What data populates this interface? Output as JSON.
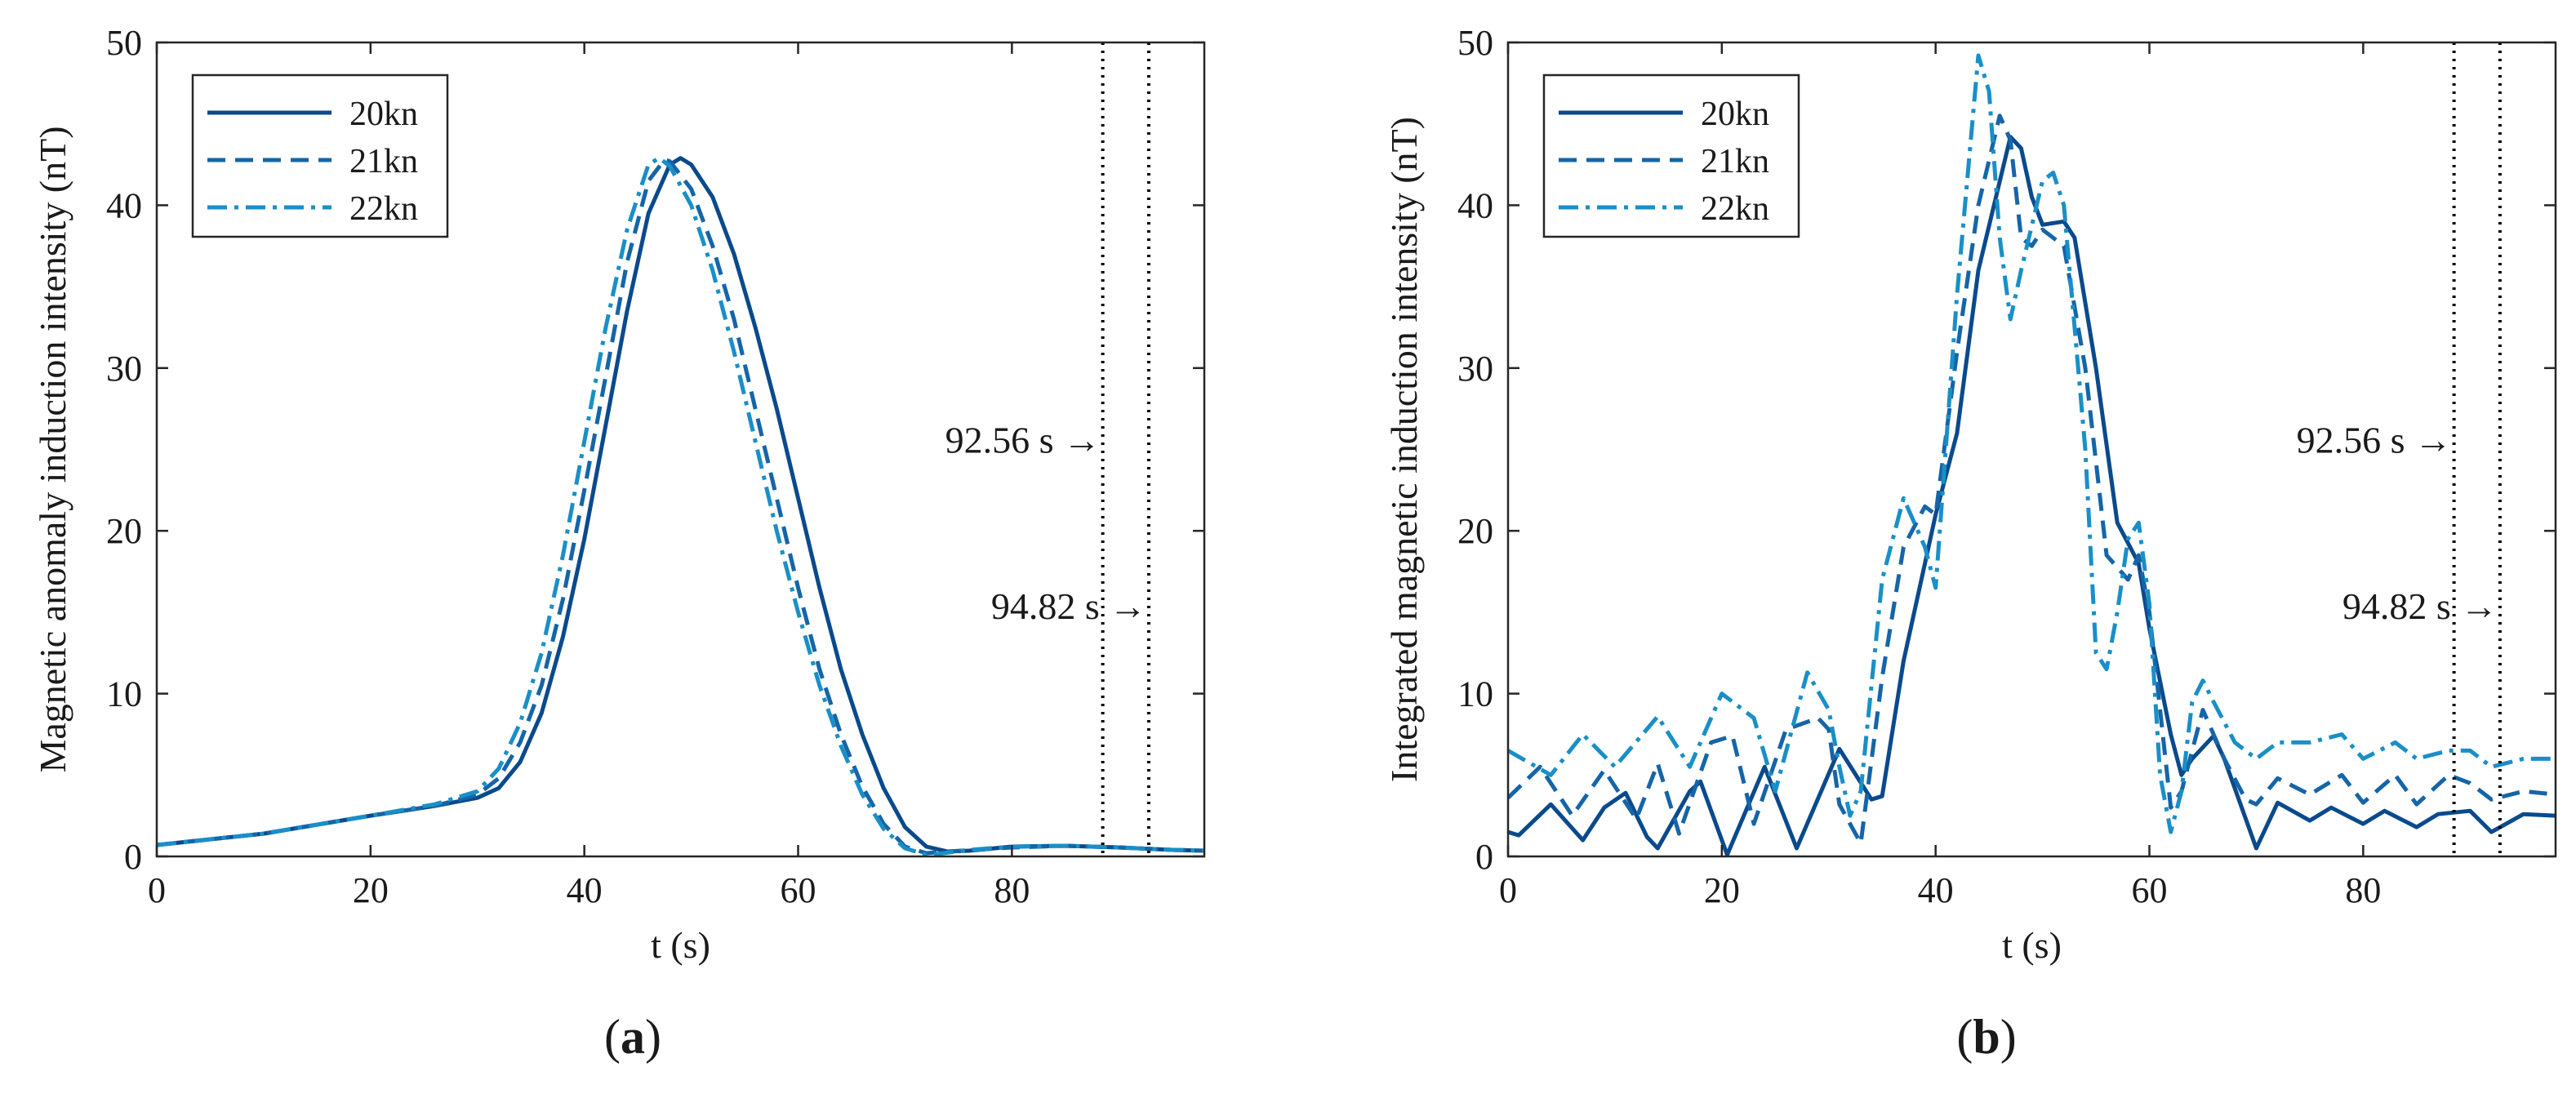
{
  "colors": {
    "s20": "#0a4a8c",
    "s21": "#1565a8",
    "s22": "#1a8fc7",
    "axis": "#262626",
    "marker": "#000000"
  },
  "chart_data": [
    {
      "type": "line",
      "panel": "(a)",
      "panel_letter": "a",
      "xlabel": "t (s)",
      "ylabel": "Magnetic anomaly induction intensity (nT)",
      "xlim": [
        0,
        98
      ],
      "ylim": [
        0,
        50
      ],
      "xticks": [
        0,
        20,
        40,
        60,
        80
      ],
      "yticks": [
        0,
        10,
        20,
        30,
        40,
        50
      ],
      "legend_position": "top-left",
      "vlines": [
        88.5,
        92.8
      ],
      "annotations": [
        {
          "text": "92.56 s →",
          "x": 88.3,
          "y": 24.8
        },
        {
          "text": "94.82 s →",
          "x": 92.6,
          "y": 14.6
        }
      ],
      "series": [
        {
          "name": "20kn",
          "style": "solid",
          "color_key": "s20",
          "x": [
            0,
            10,
            20,
            26,
            30,
            32,
            34,
            36,
            38,
            40,
            42,
            44,
            46,
            48,
            49,
            50,
            52,
            54,
            56,
            58,
            60,
            62,
            64,
            66,
            68,
            70,
            72,
            74,
            76,
            80,
            85,
            90,
            95,
            98
          ],
          "y": [
            0.7,
            1.4,
            2.5,
            3.1,
            3.6,
            4.2,
            5.8,
            8.8,
            13.5,
            19.5,
            26.5,
            33.5,
            39.5,
            42.5,
            42.9,
            42.5,
            40.5,
            37.0,
            32.5,
            27.5,
            22.0,
            16.5,
            11.5,
            7.5,
            4.2,
            1.8,
            0.6,
            0.3,
            0.35,
            0.6,
            0.65,
            0.55,
            0.4,
            0.35
          ]
        },
        {
          "name": "21kn",
          "style": "dashed",
          "color_key": "s21",
          "x": [
            0,
            10,
            20,
            26,
            30,
            32,
            34,
            36,
            38,
            40,
            42,
            44,
            46,
            47.5,
            48,
            50,
            52,
            54,
            56,
            58,
            60,
            62,
            64,
            66,
            68,
            70,
            72,
            74,
            80,
            85,
            90,
            95,
            98
          ],
          "y": [
            0.7,
            1.4,
            2.5,
            3.1,
            3.8,
            4.8,
            7.0,
            10.5,
            15.8,
            22.5,
            29.5,
            36.5,
            41.5,
            42.8,
            42.7,
            41.0,
            37.5,
            33.0,
            27.5,
            22.0,
            16.5,
            11.5,
            7.5,
            4.3,
            2.0,
            0.6,
            0.2,
            0.3,
            0.55,
            0.65,
            0.55,
            0.4,
            0.35
          ]
        },
        {
          "name": "22kn",
          "style": "dashdot",
          "color_key": "s22",
          "x": [
            0,
            10,
            20,
            26,
            30,
            32,
            34,
            36,
            38,
            40,
            42,
            44,
            46,
            47,
            48,
            50,
            52,
            54,
            56,
            58,
            60,
            62,
            64,
            66,
            68,
            70,
            72,
            73,
            76,
            80,
            85,
            90,
            95,
            98
          ],
          "y": [
            0.7,
            1.4,
            2.5,
            3.2,
            4.0,
            5.4,
            8.2,
            12.5,
            18.5,
            25.5,
            32.5,
            38.5,
            42.5,
            42.9,
            42.4,
            40.0,
            36.0,
            31.0,
            25.5,
            20.0,
            15.0,
            10.5,
            6.8,
            3.8,
            1.7,
            0.5,
            0.1,
            0.15,
            0.4,
            0.6,
            0.65,
            0.55,
            0.4,
            0.35
          ]
        }
      ]
    },
    {
      "type": "line",
      "panel": "(b)",
      "panel_letter": "b",
      "xlabel": "t (s)",
      "ylabel": "Integrated magnetic induction intensity (nT)",
      "xlim": [
        0,
        98
      ],
      "ylim": [
        0,
        50
      ],
      "xticks": [
        0,
        20,
        40,
        60,
        80
      ],
      "yticks": [
        0,
        10,
        20,
        30,
        40,
        50
      ],
      "legend_position": "top-left",
      "vlines": [
        88.5,
        92.8
      ],
      "annotations": [
        {
          "text": "92.56 s →",
          "x": 88.3,
          "y": 24.8
        },
        {
          "text": "94.82 s →",
          "x": 92.6,
          "y": 14.6
        }
      ],
      "series": [
        {
          "name": "20kn",
          "style": "solid",
          "color_key": "s20",
          "x": [
            0,
            1,
            4,
            7,
            9,
            11,
            13,
            14,
            17,
            18,
            20.5,
            24,
            27,
            31,
            34,
            35,
            37,
            40,
            42,
            44,
            47,
            48,
            49,
            50,
            52,
            53,
            55,
            57,
            59,
            60,
            62,
            63,
            64,
            66,
            67,
            70,
            72,
            75,
            77,
            80,
            82,
            85,
            87,
            90,
            92,
            95,
            98
          ],
          "y": [
            1.5,
            1.3,
            3.2,
            1.0,
            3.0,
            3.9,
            1.2,
            0.5,
            4.0,
            4.6,
            0.1,
            5.5,
            0.5,
            6.6,
            3.5,
            3.7,
            12.0,
            21.0,
            26.0,
            36.0,
            44.2,
            43.5,
            40.5,
            38.8,
            39.0,
            38.0,
            30.0,
            20.5,
            18.0,
            14.0,
            7.5,
            5.0,
            6.0,
            7.4,
            6.0,
            0.5,
            3.3,
            2.2,
            3.0,
            2.0,
            2.8,
            1.8,
            2.6,
            2.8,
            1.5,
            2.6,
            2.5
          ]
        },
        {
          "name": "21kn",
          "style": "dashed",
          "color_key": "s21",
          "x": [
            0,
            3,
            6,
            9,
            12,
            14,
            16,
            19,
            21,
            23,
            26,
            29,
            30,
            31,
            33,
            35,
            37,
            39,
            40,
            42,
            44,
            46,
            47,
            48,
            49,
            50,
            52,
            54,
            56,
            58,
            59,
            60,
            61,
            62,
            63,
            65,
            67,
            69,
            70,
            72,
            75,
            78,
            80,
            83,
            85,
            88,
            90,
            92,
            95,
            98
          ],
          "y": [
            3.6,
            5.5,
            2.5,
            5.3,
            2.3,
            5.7,
            1.4,
            7.0,
            7.4,
            2.0,
            7.8,
            8.5,
            7.8,
            3.2,
            0.8,
            11.0,
            19.0,
            21.5,
            21.0,
            31.0,
            40.0,
            45.5,
            44.0,
            38.0,
            37.5,
            38.5,
            37.5,
            30.0,
            18.5,
            17.0,
            18.5,
            15.0,
            9.0,
            3.0,
            4.0,
            9.0,
            6.0,
            3.5,
            3.2,
            4.8,
            3.8,
            5.0,
            3.3,
            5.0,
            3.2,
            5.0,
            4.5,
            3.5,
            4.0,
            3.8
          ]
        },
        {
          "name": "22kn",
          "style": "dashdot",
          "color_key": "s22",
          "x": [
            0,
            4,
            7,
            10,
            14,
            17,
            20,
            23,
            25,
            28,
            30,
            31,
            32,
            33,
            35,
            37,
            39,
            40,
            42,
            44,
            45,
            46,
            47,
            48,
            50,
            51,
            52,
            54,
            55,
            56,
            57,
            58,
            59,
            60,
            61,
            62,
            63,
            64,
            65,
            66,
            68,
            70,
            72,
            75,
            78,
            80,
            83,
            85,
            88,
            90,
            92,
            95,
            98
          ],
          "y": [
            6.5,
            5.0,
            7.5,
            5.5,
            8.6,
            5.5,
            10.0,
            8.5,
            4.0,
            11.3,
            9.0,
            5.5,
            2.5,
            4.0,
            17.0,
            22.0,
            19.0,
            16.5,
            34.5,
            49.2,
            47.0,
            38.0,
            33.0,
            36.0,
            41.5,
            42.0,
            40.0,
            25.0,
            12.5,
            11.5,
            15.0,
            19.5,
            20.5,
            15.5,
            5.0,
            1.5,
            4.0,
            9.5,
            10.8,
            9.5,
            7.0,
            6.0,
            7.0,
            7.0,
            7.5,
            6.0,
            7.0,
            6.0,
            6.5,
            6.5,
            5.5,
            6.0,
            6.0
          ]
        }
      ]
    }
  ]
}
